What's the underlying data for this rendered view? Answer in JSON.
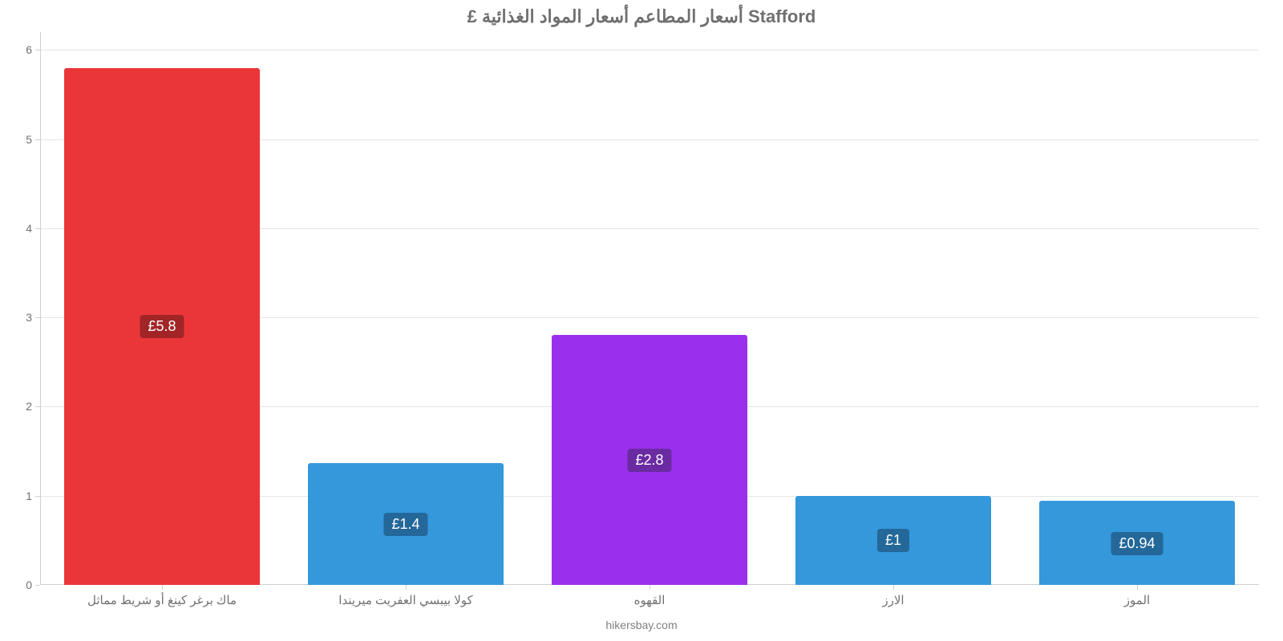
{
  "chart": {
    "type": "bar",
    "title": "£ أسعار المطاعم أسعار المواد الغذائية Stafford",
    "title_color": "#6f6f6f",
    "title_fontsize": 22,
    "footer": "hikersbay.com",
    "background_color": "#ffffff",
    "grid_color": "#e5e5e5",
    "axis_color": "#cfcfcf",
    "tick_label_color": "#707070",
    "tick_fontsize": 14,
    "cat_label_fontsize": 15,
    "y": {
      "min": 0,
      "max": 6.2,
      "ticks": [
        0,
        1,
        2,
        3,
        4,
        5,
        6
      ],
      "tick_labels": [
        "0",
        "1",
        "2",
        "3",
        "4",
        "5",
        "6"
      ]
    },
    "categories": [
      "ماك برغر كينغ أو شريط مماثل",
      "كولا بيبسي العفريت ميريندا",
      "القهوه",
      "الارز",
      "الموز"
    ],
    "values": [
      5.8,
      1.37,
      2.8,
      1.0,
      0.94
    ],
    "value_labels": [
      "£5.8",
      "£1.4",
      "£2.8",
      "£1",
      "£0.94"
    ],
    "bar_colors": [
      "#eb3639",
      "#3498db",
      "#9b30ec",
      "#3498db",
      "#3498db"
    ],
    "badge_colors": [
      "#a12527",
      "#24689a",
      "#6a2ba2",
      "#24689a",
      "#24689a"
    ],
    "badge_text_color": "#ffffff",
    "bar_width_ratio": 0.8,
    "slot_padding_ratio": 0.02
  }
}
